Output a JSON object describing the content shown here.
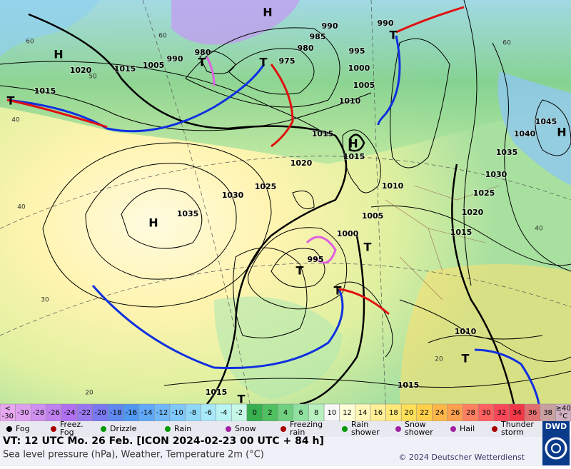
{
  "map": {
    "pressure_labels": [
      1020,
      1015,
      1005,
      990,
      980,
      990,
      985,
      980,
      975,
      990,
      995,
      1000,
      1005,
      1010,
      1015,
      1015,
      1020,
      1025,
      1030,
      1035,
      1015,
      1010,
      1005,
      1000,
      995,
      1040,
      1045,
      1035,
      1030,
      1025,
      1020,
      1015,
      1010,
      1015,
      1015
    ],
    "centers": [
      "H",
      "H",
      "H",
      "H",
      "H",
      "T",
      "T",
      "T",
      "T",
      "T",
      "T",
      "T",
      "T",
      "T"
    ],
    "temperature_labels": [
      60,
      60,
      60,
      50,
      40,
      40,
      40,
      30,
      20,
      20
    ]
  },
  "legend": {
    "below_label": [
      "<",
      "-30"
    ],
    "above_label": [
      "≥40",
      "°C"
    ],
    "scale": [
      -30,
      -28,
      -26,
      -24,
      -22,
      -20,
      -18,
      -16,
      -14,
      -12,
      -10,
      -8,
      -6,
      -4,
      -2,
      0,
      2,
      4,
      6,
      8,
      10,
      12,
      14,
      16,
      18,
      20,
      22,
      24,
      26,
      28,
      30,
      32,
      34,
      36,
      38
    ],
    "colors": [
      "#e8a8f0",
      "#e0a0f0",
      "#d090f0",
      "#c080f0",
      "#b070f0",
      "#9878f0",
      "#7878f0",
      "#6088f0",
      "#5098f0",
      "#60a8f8",
      "#70b8f8",
      "#80c8f8",
      "#90d8f8",
      "#a8e8f8",
      "#b8f4f4",
      "#c8f8e8",
      "#38b050",
      "#50c060",
      "#70d080",
      "#90e0a0",
      "#b8f0c0",
      "#f8f8f8",
      "#ffffd8",
      "#fff8b8",
      "#fff098",
      "#ffe878",
      "#ffe058",
      "#ffd048",
      "#ffb848",
      "#ffa050",
      "#ff8060",
      "#ff6060",
      "#f84858",
      "#f03848",
      "#e07070",
      "#c8a0a0",
      "#d0b0c0"
    ],
    "weather": [
      [
        "Fog"
      ],
      [
        "Freez.",
        "Fog"
      ],
      [
        "Drizzle"
      ],
      [
        "Rain"
      ],
      [
        "Snow"
      ],
      [
        "Freezing",
        "rain"
      ],
      [
        "Rain",
        "shower"
      ],
      [
        "Snow",
        "shower"
      ],
      [
        "Hail"
      ],
      [
        "Thunder",
        "storm"
      ]
    ]
  },
  "footer": {
    "valid_time": "VT: 12 UTC Mo.  26 Feb. [ICON 2024-02-23  00 UTC + 84 h]",
    "description": "Sea level pressure (hPa), Weather, Temperature 2m (°C)",
    "copyright": "© 2024 Deutscher Wetterdienst",
    "logo": "DWD"
  }
}
